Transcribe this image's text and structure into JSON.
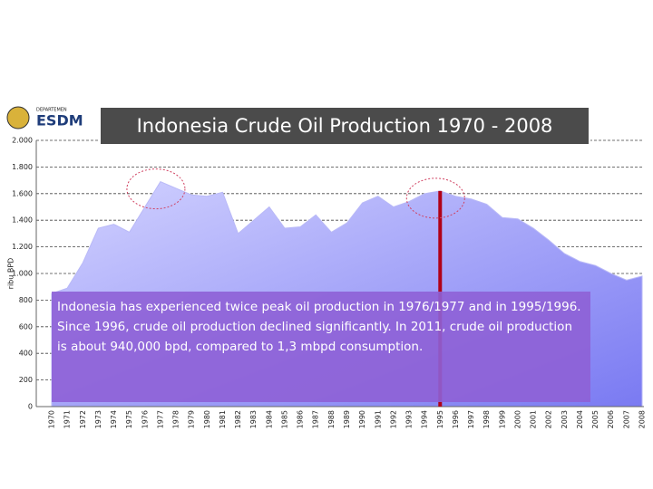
{
  "logo": {
    "small": "DEPARTEMEN",
    "name": "ESDM"
  },
  "annotation": [
    "Indonesia has experienced twice peak oil production in 1976/1977 and in 1995/1996.",
    "Since 1996, crude oil production declined significantly. In 2011, crude oil production is about 940,000 bpd, compared to 1,3 mbpd consumption."
  ],
  "chart_data": {
    "type": "area",
    "title": "Indonesia Crude Oil Production 1970 - 2008",
    "y_label": "ribu BPD",
    "x": [
      1970,
      1971,
      1972,
      1973,
      1974,
      1975,
      1976,
      1977,
      1978,
      1979,
      1980,
      1981,
      1982,
      1983,
      1984,
      1985,
      1986,
      1987,
      1988,
      1989,
      1990,
      1991,
      1992,
      1993,
      1994,
      1995,
      1996,
      1997,
      1998,
      1999,
      2000,
      2001,
      2002,
      2003,
      2004,
      2005,
      2006,
      2007,
      2008
    ],
    "values": [
      850,
      890,
      1080,
      1340,
      1370,
      1310,
      1500,
      1690,
      1640,
      1590,
      1580,
      1610,
      1300,
      1400,
      1500,
      1340,
      1350,
      1440,
      1310,
      1380,
      1530,
      1580,
      1500,
      1540,
      1600,
      1620,
      1580,
      1560,
      1520,
      1420,
      1410,
      1340,
      1250,
      1150,
      1090,
      1060,
      1000,
      950,
      980
    ],
    "color": "#b9b9f7",
    "xlim": [
      1970,
      2008
    ],
    "ylim": [
      0,
      2000
    ],
    "yticks": [
      0,
      200,
      400,
      600,
      800,
      {
        "value": 1000,
        "label": "1.000"
      },
      {
        "value": 1200,
        "label": "1.200"
      },
      {
        "value": 1400,
        "label": "1.400"
      },
      {
        "value": 1600,
        "label": "1.600"
      },
      {
        "value": 1800,
        "label": "1.800"
      },
      {
        "value": 2000,
        "label": "2.000"
      }
    ],
    "grid": true,
    "highlight": 1995,
    "peaks": [
      1977,
      1995
    ]
  }
}
